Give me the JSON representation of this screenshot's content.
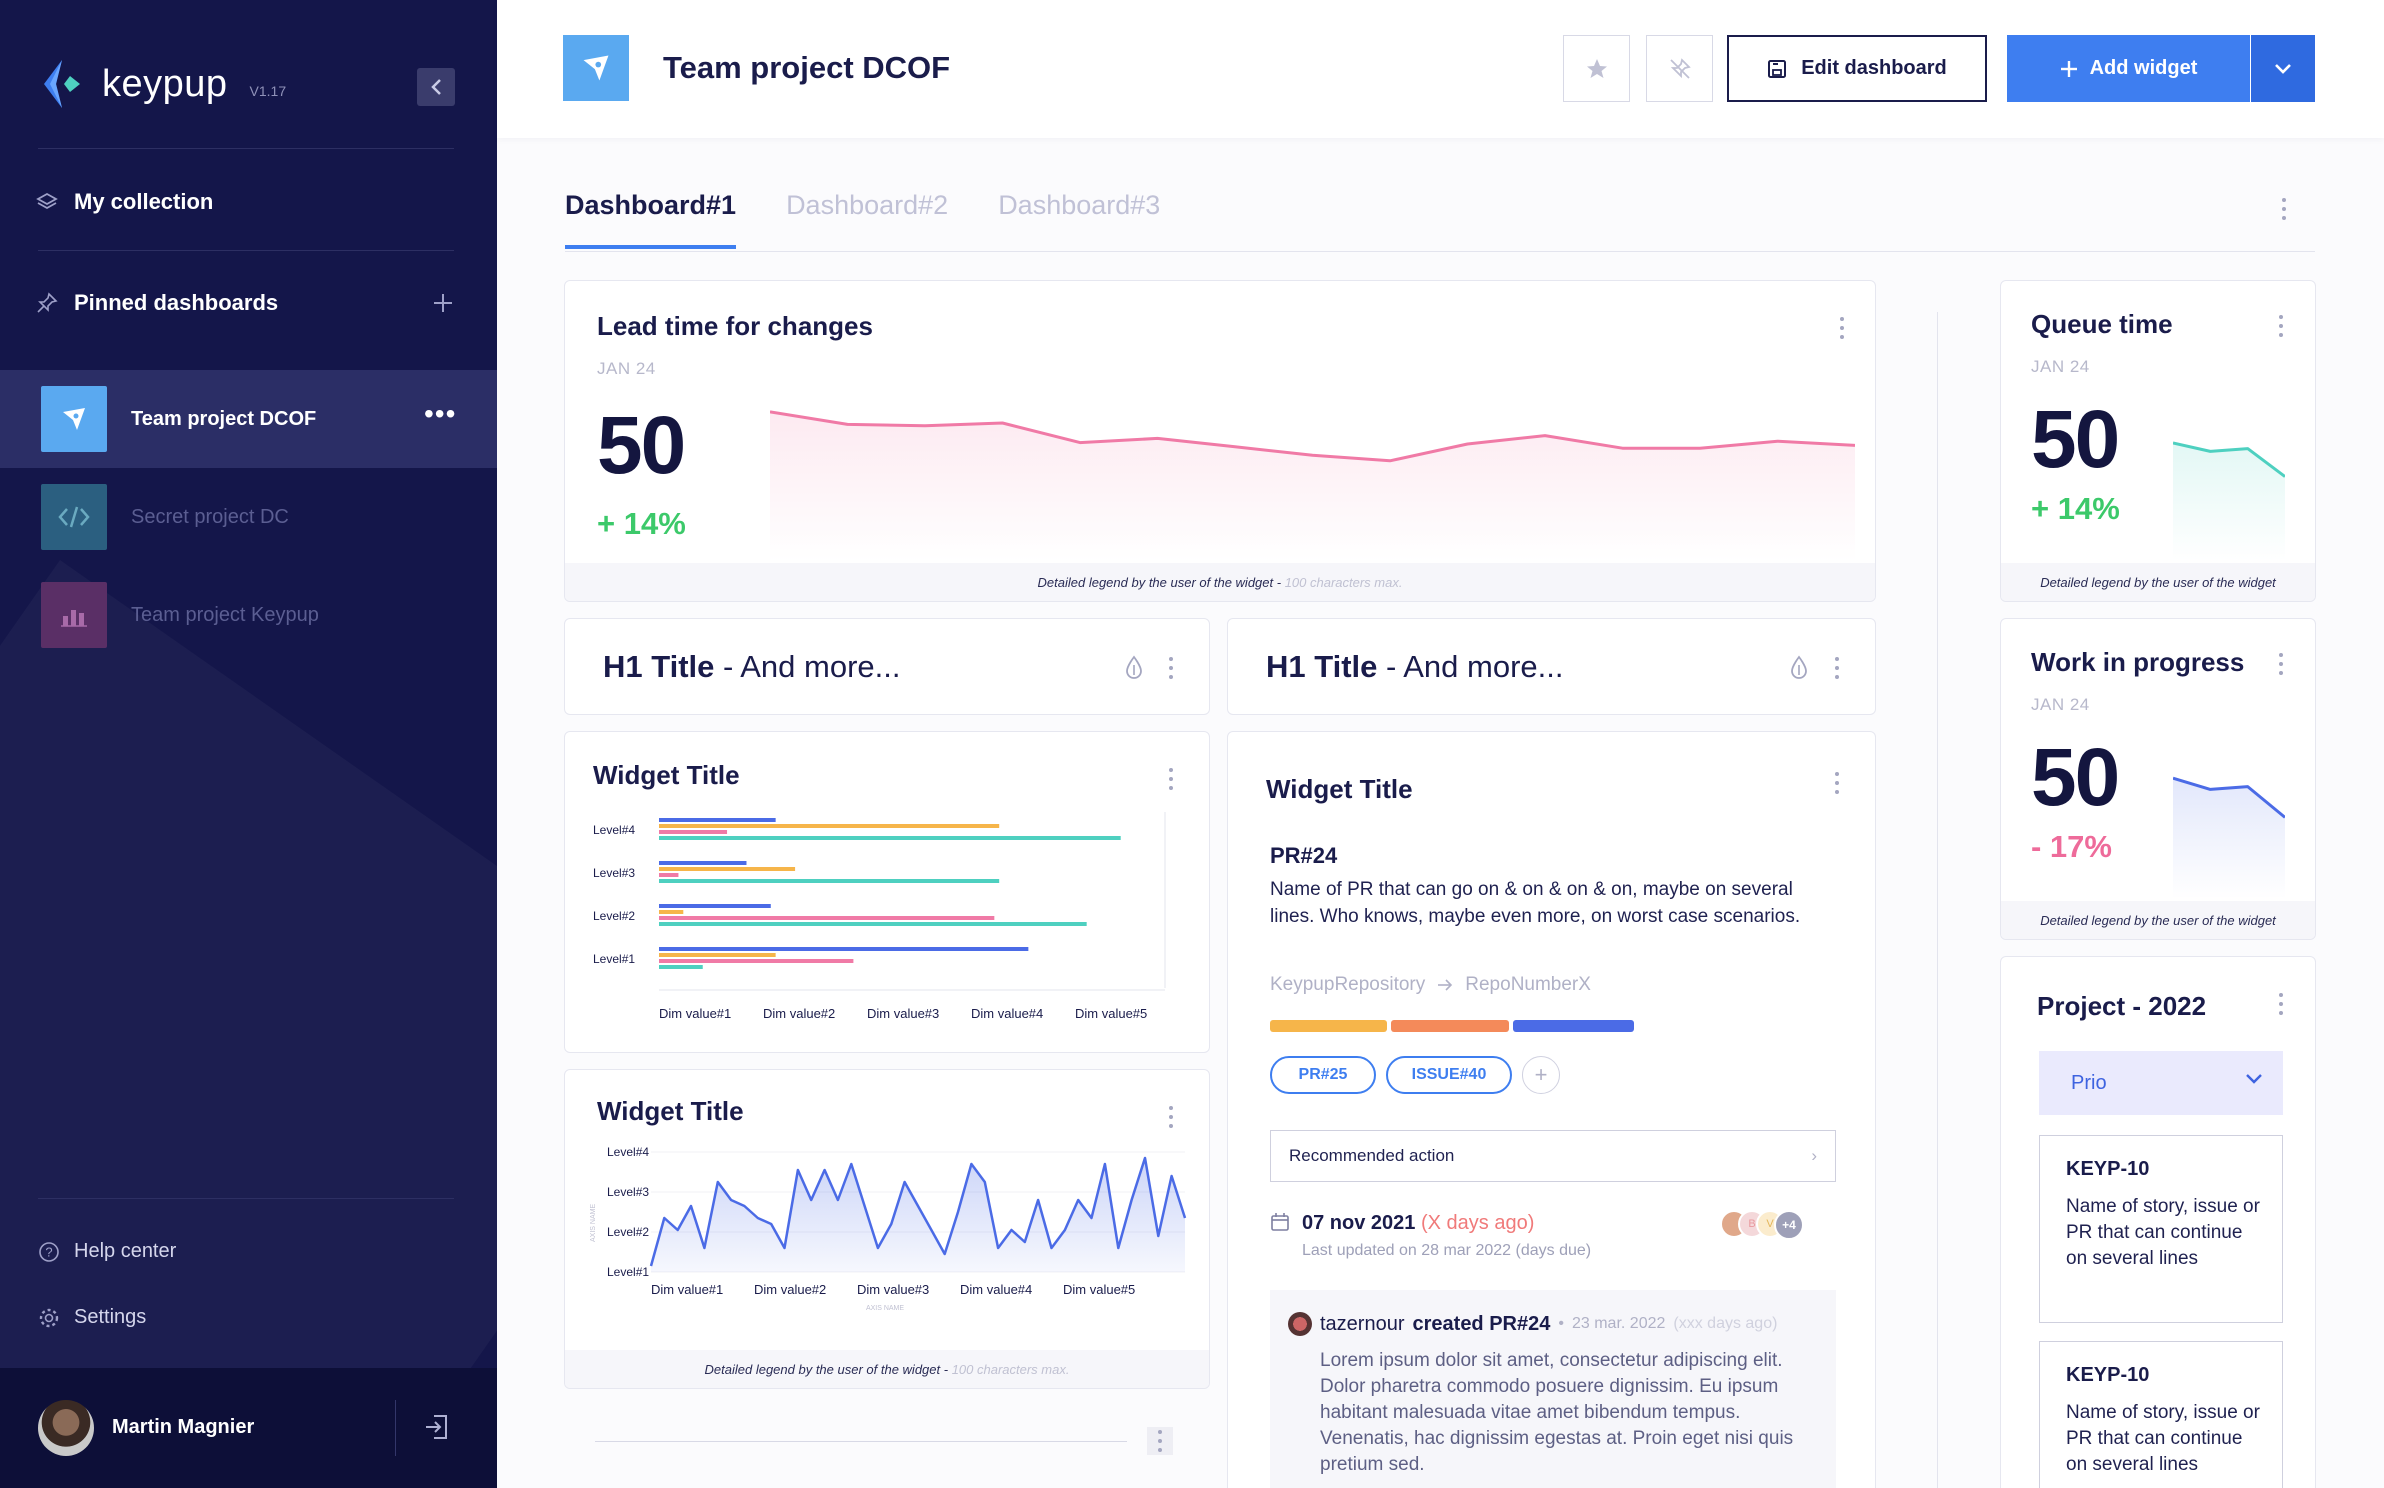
{
  "app": {
    "name": "keypup",
    "version": "V1.17"
  },
  "sidebar": {
    "my_collection": "My collection",
    "pinned_dashboards": "Pinned dashboards",
    "dashboards": [
      {
        "label": "Team project DCOF",
        "icon": "compass-icon",
        "color": "#5aa9f0",
        "active": true
      },
      {
        "label": "Secret project DC",
        "icon": "code-icon",
        "color": "#3f8fa8",
        "active": false
      },
      {
        "label": "Team project Keypup",
        "icon": "bar-chart-icon",
        "color": "#7a3e78",
        "active": false
      }
    ],
    "help_center": "Help center",
    "settings": "Settings",
    "user_name": "Martin Magnier"
  },
  "header": {
    "title": "Team project DCOF",
    "edit_label": "Edit dashboard",
    "add_label": "Add widget"
  },
  "tabs": [
    "Dashboard#1",
    "Dashboard#2",
    "Dashboard#3"
  ],
  "widgets": {
    "lead_time": {
      "title": "Lead time for changes",
      "date": "JAN 24",
      "value": "50",
      "delta": "+ 14%",
      "legend": "Detailed legend by the user of the widget - ",
      "legend_hint": "100 characters max.",
      "chart_data": {
        "type": "line",
        "values": [
          78,
          69,
          68,
          70,
          56,
          59,
          53,
          47,
          43,
          55,
          61,
          52,
          52,
          57,
          54
        ],
        "color": "#f07aa6"
      }
    },
    "h1_left": {
      "title": "H1 Title",
      "suffix": " - And more..."
    },
    "h1_right": {
      "title": "H1 Title",
      "suffix": " - And more..."
    },
    "bar_widget": {
      "title": "Widget Title",
      "chart_data": {
        "type": "bar",
        "categories": [
          "Level#4",
          "Level#3",
          "Level#2",
          "Level#1"
        ],
        "x_ticks": [
          "Dim value#1",
          "Dim value#2",
          "Dim value#3",
          "Dim value#4",
          "Dim value#5"
        ],
        "series": [
          {
            "color": "#4b6be6",
            "values": [
              24,
              18,
              23,
              76
            ]
          },
          {
            "color": "#f6b54a",
            "values": [
              70,
              28,
              5,
              24
            ]
          },
          {
            "color": "#f07aa6",
            "values": [
              14,
              4,
              69,
              40
            ]
          },
          {
            "color": "#4ed0c0",
            "values": [
              95,
              70,
              88,
              9
            ]
          }
        ]
      }
    },
    "area_widget": {
      "title": "Widget Title",
      "axis_name": "AXIS NAME",
      "chart_data": {
        "type": "area",
        "y_ticks": [
          "Level#4",
          "Level#3",
          "Level#2",
          "Level#1"
        ],
        "x_ticks": [
          "Dim value#1",
          "Dim value#2",
          "Dim value#3",
          "Dim value#4",
          "Dim value#5"
        ],
        "values": [
          5,
          45,
          35,
          55,
          20,
          75,
          60,
          55,
          45,
          40,
          20,
          85,
          60,
          85,
          60,
          90,
          55,
          20,
          40,
          75,
          55,
          35,
          15,
          50,
          90,
          75,
          20,
          35,
          25,
          60,
          20,
          35,
          60,
          45,
          90,
          20,
          60,
          95,
          30,
          80,
          45
        ],
        "color": "#4b6be6"
      },
      "legend": "Detailed legend by the user of the widget - ",
      "legend_hint": "100 characters max."
    },
    "pr_widget": {
      "title": "Widget Title",
      "pr": "PR#24",
      "description": "Name of PR that can go on & on & on & on, maybe on several lines. Who knows, maybe even more, on worst case scenarios.",
      "repo": "KeypupRepository",
      "repo_target": "RepoNumberX",
      "segments": [
        {
          "color": "#f6b54a",
          "fraction": 0.33
        },
        {
          "color": "#f48a5a",
          "fraction": 0.33
        },
        {
          "color": "#4b6be6",
          "fraction": 0.34
        }
      ],
      "tags": [
        "PR#25",
        "ISSUE#40"
      ],
      "recommended": "Recommended action",
      "date": "07 nov 2021",
      "date_late": "(X days ago)",
      "last_updated": "Last updated on 28 mar 2022 (days due)",
      "extra_assignees": "+4",
      "assignee_initials": [
        "B",
        "V"
      ],
      "activity": {
        "author": "tazernour",
        "action": "created PR#24",
        "date": "23 mar. 2022",
        "ago": "(xxx days ago)",
        "body": "Lorem ipsum dolor sit amet, consectetur adipiscing elit. Dolor pharetra commodo posuere dignissim. Eu ipsum habitant malesuada vitae amet bibendum tempus. Venenatis, hac dignissim egestas at. Proin eget nisi quis pretium sed."
      }
    },
    "queue_time": {
      "title": "Queue time",
      "date": "JAN 24",
      "value": "50",
      "delta": "+ 14%",
      "legend": "Detailed legend by the user of the widget",
      "chart_data": {
        "type": "line",
        "values": [
          70,
          64,
          66,
          46
        ],
        "color": "#4ed0c0"
      }
    },
    "wip": {
      "title": "Work in progress",
      "date": "JAN 24",
      "value": "50",
      "delta": "- 17%",
      "legend": "Detailed legend by the user of the widget",
      "chart_data": {
        "type": "line",
        "values": [
          72,
          64,
          66,
          44
        ],
        "color": "#4b6be6"
      }
    },
    "project": {
      "title": "Project - 2022",
      "dropdown": "Prio",
      "issues": [
        {
          "key": "KEYP-10",
          "text": "Name of story, issue or PR that can continue on several lines"
        },
        {
          "key": "KEYP-10",
          "text": "Name of story, issue or PR that can continue on several lines"
        }
      ]
    }
  }
}
